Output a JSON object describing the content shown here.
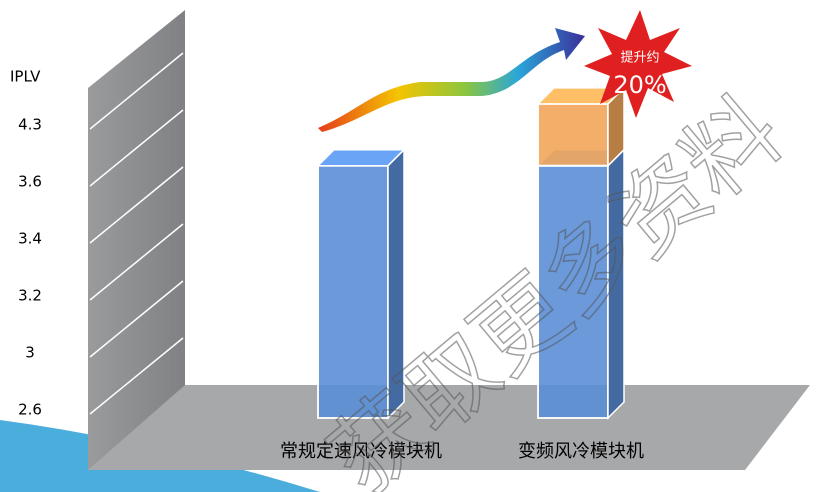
{
  "chart_data": {
    "type": "bar3d",
    "y_label": "IPLV",
    "categories": [
      "常规定速风冷模块机",
      "变频风冷模块机"
    ],
    "series": [
      {
        "color": "#5b8fd6",
        "values": [
          3.8,
          3.8
        ]
      },
      {
        "color": "#f2a65a",
        "values": [
          null,
          0.76
        ]
      }
    ],
    "ylim": [
      2.6,
      4.6
    ],
    "yticks": [
      2.6,
      3.0,
      3.2,
      3.4,
      3.6,
      4.3
    ],
    "annotation": [
      "提升约",
      "20%"
    ],
    "watermark": "获取更多资料"
  }
}
